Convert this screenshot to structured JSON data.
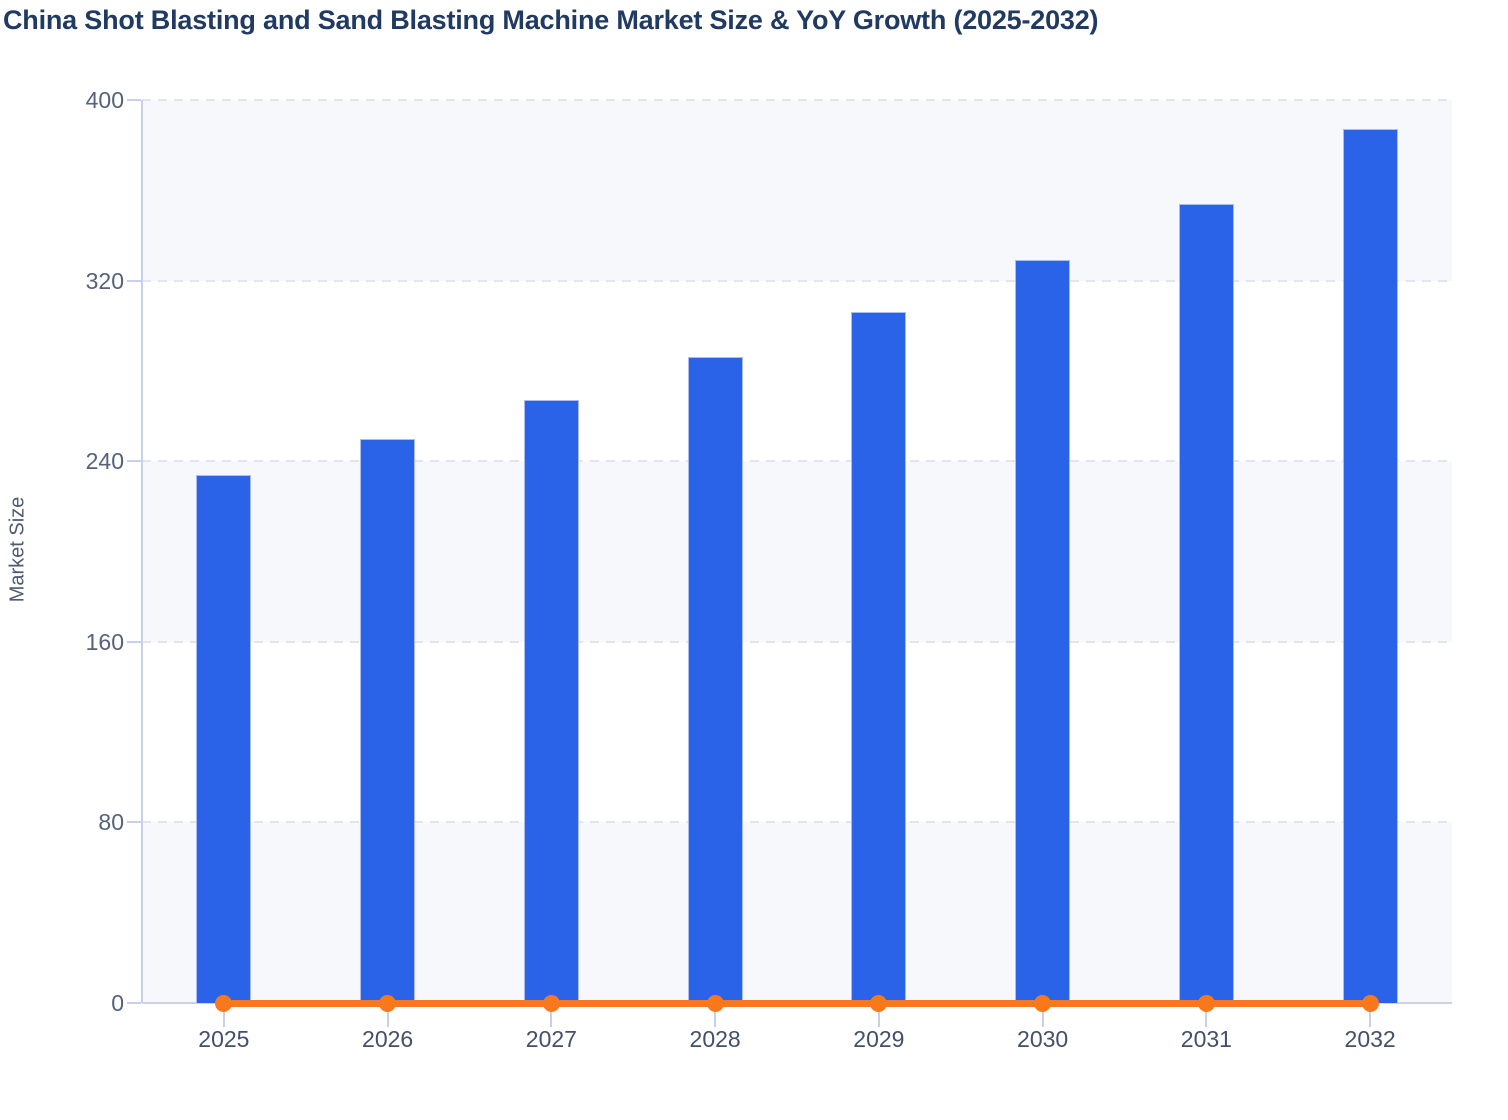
{
  "title": "China Shot Blasting and Sand Blasting Machine Market Size & YoY Growth (2025-2032)",
  "chart_data": {
    "type": "bar",
    "title": "China Shot Blasting and Sand Blasting Machine Market Size & YoY Growth (2025-2032)",
    "categories": [
      "2025",
      "2026",
      "2027",
      "2028",
      "2029",
      "2030",
      "2031",
      "2032"
    ],
    "series": [
      {
        "name": "Market Size",
        "type": "bar",
        "color": "#2b63e8",
        "values": [
          234,
          250,
          267,
          286,
          306,
          329,
          354,
          387
        ]
      },
      {
        "name": "YoY Growth",
        "type": "line",
        "color": "#f8791c",
        "values": [
          0,
          0,
          0,
          0,
          0,
          0,
          0,
          0
        ],
        "plotted_at_baseline": true
      }
    ],
    "xlabel": "",
    "ylabel": "Market Size",
    "ylim": [
      0,
      400
    ],
    "yticks": [
      0,
      80,
      160,
      240,
      320,
      400
    ],
    "grid": "horizontal-dashed",
    "legend_position": "none",
    "plot_background": "alternating light bands"
  },
  "colors": {
    "bar_fill": "#2b63e8",
    "bar_border": "#aabdf0",
    "line": "#f8791c",
    "title_text": "#203a61",
    "y_label_text": "#56617a",
    "x_label_text": "#42506a",
    "axis_title_text": "#4d5a70",
    "band_fill": "#f6f8fb",
    "gridline": "#e2e5ec",
    "axis_line": "#c7cfea",
    "background": "#ffffff"
  }
}
